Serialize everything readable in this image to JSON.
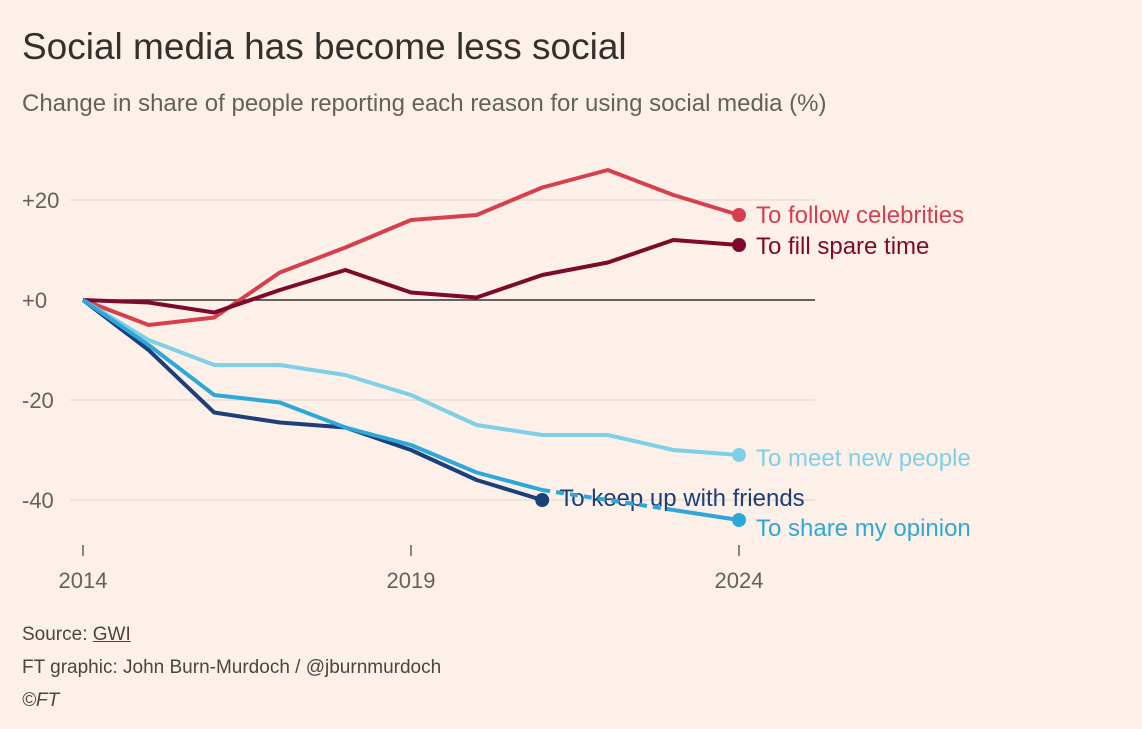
{
  "chart_data": {
    "type": "line",
    "title": "Social media has become less social",
    "subtitle": "Change in share of people reporting each reason for using social media (%)",
    "xlabel": "",
    "ylabel": "",
    "x": [
      2014,
      2015,
      2016,
      2017,
      2018,
      2019,
      2020,
      2021,
      2022,
      2023,
      2024
    ],
    "xticks": [
      "2014",
      "2019",
      "2024"
    ],
    "yticks": [
      "+20",
      "+0",
      "-20",
      "-40"
    ],
    "ylim": [
      -48,
      28
    ],
    "grid": true,
    "series": [
      {
        "name": "To follow celebrities",
        "color": "#d6404e",
        "values": [
          0,
          -5,
          -3.5,
          5.5,
          10.5,
          16,
          17,
          22.5,
          26,
          21,
          17
        ]
      },
      {
        "name": "To fill spare time",
        "color": "#7d0a2c",
        "values": [
          0,
          -0.5,
          -2.5,
          2,
          6,
          1.5,
          0.5,
          5,
          7.5,
          12,
          11
        ]
      },
      {
        "name": "To meet new people",
        "color": "#7dd0e6",
        "values": [
          0,
          -8,
          -13,
          -13,
          -15,
          -19,
          -25,
          -27,
          -27,
          -30,
          -31
        ]
      },
      {
        "name": "To keep up with friends",
        "color": "#1b3f7a",
        "values": [
          0,
          -10,
          -22.5,
          -24.5,
          -25.5,
          -30,
          -36,
          -40,
          null,
          null,
          null
        ]
      },
      {
        "name": "To share my opinion",
        "color": "#2ea8d8",
        "values": [
          0,
          -9,
          -19,
          -20.5,
          -25.5,
          -29,
          -34.5,
          -38,
          null,
          -42,
          -44
        ]
      }
    ]
  },
  "footer": {
    "source_label": "Source: ",
    "source_link": "GWI",
    "credit": "FT graphic: John Burn-Murdoch / @jburnmurdoch",
    "copyright": "©FT"
  }
}
